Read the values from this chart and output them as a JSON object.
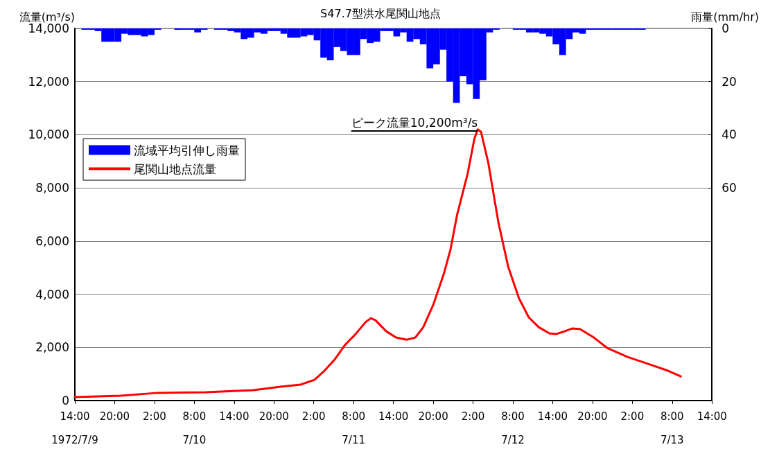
{
  "chart_data": {
    "type": "line",
    "title": "S47.7型洪水尾関山地点",
    "ylabel": "流量(m³/s)",
    "y2label": "雨量(mm/hr)",
    "xlim": [
      "1972-07-09T14:00",
      "1972-07-13T14:00"
    ],
    "xticks": [
      {
        "value": "1972-07-09T14:00",
        "label": "14:00\n\n1972/7/9"
      },
      {
        "value": "1972-07-09T20:00",
        "label": "20:00"
      },
      {
        "value": "1972-07-10T02:00",
        "label": "2:00"
      },
      {
        "value": "1972-07-10T08:00",
        "label": "8:00\n\n7/10"
      },
      {
        "value": "1972-07-10T14:00",
        "label": "14:00"
      },
      {
        "value": "1972-07-10T20:00",
        "label": "20:00"
      },
      {
        "value": "1972-07-11T02:00",
        "label": "2:00"
      },
      {
        "value": "1972-07-11T08:00",
        "label": "8:00\n\n7/11"
      },
      {
        "value": "1972-07-11T14:00",
        "label": "14:00"
      },
      {
        "value": "1972-07-11T20:00",
        "label": "20:00"
      },
      {
        "value": "1972-07-12T02:00",
        "label": "2:00"
      },
      {
        "value": "1972-07-12T08:00",
        "label": "8:00\n\n7/12"
      },
      {
        "value": "1972-07-12T14:00",
        "label": "14:00"
      },
      {
        "value": "1972-07-12T20:00",
        "label": "20:00"
      },
      {
        "value": "1972-07-13T02:00",
        "label": "2:00"
      },
      {
        "value": "1972-07-13T08:00",
        "label": "8:00\n\n7/13"
      },
      {
        "value": "1972-07-13T14:00",
        "label": "14:00"
      }
    ],
    "ylim": [
      0,
      14000
    ],
    "yticks": [
      0,
      {
        "value": 2000,
        "label": "2,000"
      },
      {
        "value": 4000,
        "label": "4,000"
      },
      {
        "value": 6000,
        "label": "6,000"
      },
      {
        "value": 8000,
        "label": "8,000"
      },
      {
        "value": 10000,
        "label": "10,000"
      },
      {
        "value": 12000,
        "label": "12,000"
      },
      {
        "value": 14000,
        "label": "14,000"
      }
    ],
    "y2lim": [
      140,
      0
    ],
    "y2ticks": [
      0,
      20,
      40,
      60
    ],
    "grid": "y",
    "legend": "top left",
    "marker": "none",
    "line_style": "solid",
    "series": [
      {
        "name": "流域平均引伸し雨量",
        "type": "bar",
        "axis": "y2",
        "color": "#0000ff",
        "x": [
          "1972-07-09T14:30",
          "1972-07-09T15:30",
          "1972-07-09T16:30",
          "1972-07-09T17:30",
          "1972-07-09T18:30",
          "1972-07-09T19:30",
          "1972-07-09T20:30",
          "1972-07-09T21:30",
          "1972-07-09T22:30",
          "1972-07-09T23:30",
          "1972-07-10T00:30",
          "1972-07-10T01:30",
          "1972-07-10T02:30",
          "1972-07-10T03:30",
          "1972-07-10T04:30",
          "1972-07-10T05:30",
          "1972-07-10T06:30",
          "1972-07-10T07:30",
          "1972-07-10T08:30",
          "1972-07-10T09:30",
          "1972-07-10T10:30",
          "1972-07-10T11:30",
          "1972-07-10T12:30",
          "1972-07-10T13:30",
          "1972-07-10T14:30",
          "1972-07-10T15:30",
          "1972-07-10T16:30",
          "1972-07-10T17:30",
          "1972-07-10T18:30",
          "1972-07-10T19:30",
          "1972-07-10T20:30",
          "1972-07-10T21:30",
          "1972-07-10T22:30",
          "1972-07-10T23:30",
          "1972-07-11T00:30",
          "1972-07-11T01:30",
          "1972-07-11T02:30",
          "1972-07-11T03:30",
          "1972-07-11T04:30",
          "1972-07-11T05:30",
          "1972-07-11T06:30",
          "1972-07-11T07:30",
          "1972-07-11T08:30",
          "1972-07-11T09:30",
          "1972-07-11T10:30",
          "1972-07-11T11:30",
          "1972-07-11T12:30",
          "1972-07-11T13:30",
          "1972-07-11T14:30",
          "1972-07-11T15:30",
          "1972-07-11T16:30",
          "1972-07-11T17:30",
          "1972-07-11T18:30",
          "1972-07-11T19:30",
          "1972-07-11T20:30",
          "1972-07-11T21:30",
          "1972-07-11T22:30",
          "1972-07-11T23:30",
          "1972-07-12T00:30",
          "1972-07-12T01:30",
          "1972-07-12T02:30",
          "1972-07-12T03:30",
          "1972-07-12T04:30",
          "1972-07-12T05:30",
          "1972-07-12T06:30",
          "1972-07-12T07:30",
          "1972-07-12T08:30",
          "1972-07-12T09:30",
          "1972-07-12T10:30",
          "1972-07-12T11:30",
          "1972-07-12T12:30",
          "1972-07-12T13:30",
          "1972-07-12T14:30",
          "1972-07-12T15:30",
          "1972-07-12T16:30",
          "1972-07-12T17:30",
          "1972-07-12T18:30",
          "1972-07-12T19:30",
          "1972-07-12T20:30",
          "1972-07-12T21:30",
          "1972-07-12T22:30",
          "1972-07-12T23:30",
          "1972-07-13T00:30",
          "1972-07-13T01:30",
          "1972-07-13T02:30",
          "1972-07-13T03:30"
        ],
        "values": [
          0,
          0.5,
          0.5,
          1,
          5,
          5,
          5,
          2,
          2.5,
          2.5,
          3,
          2.5,
          0.5,
          0,
          0,
          0.5,
          0.5,
          0.5,
          1.5,
          0.5,
          0,
          0.5,
          0.5,
          1,
          1.5,
          4,
          3.5,
          1.5,
          2,
          1,
          1,
          2,
          3.5,
          3.5,
          3,
          2.5,
          4.5,
          11,
          12,
          7,
          8.5,
          10,
          10,
          4,
          5.5,
          5,
          1,
          1,
          3,
          1.5,
          5,
          4,
          6,
          15,
          13.5,
          8,
          20,
          28,
          18,
          21,
          26.5,
          19.5,
          1.5,
          0.5,
          0,
          0,
          0.5,
          0.5,
          1.5,
          1.5,
          2,
          3,
          6,
          10,
          4,
          1.5,
          2,
          0.5,
          0.5,
          0.5,
          0.5,
          0.5,
          0.5,
          0.5,
          0.5,
          0.5
        ]
      },
      {
        "name": "尾関山地点流量",
        "color": "#ff0000",
        "x": [
          "1972-07-09T14:00",
          "1972-07-09T20:54",
          "1972-07-10T02:30",
          "1972-07-10T09:42",
          "1972-07-10T16:54",
          "1972-07-10T21:00",
          "1972-07-11T00:00",
          "1972-07-11T02:06",
          "1972-07-11T03:36",
          "1972-07-11T05:12",
          "1972-07-11T06:42",
          "1972-07-11T08:18",
          "1972-07-11T09:48",
          "1972-07-11T10:36",
          "1972-07-11T11:18",
          "1972-07-11T12:54",
          "1972-07-11T14:24",
          "1972-07-11T16:00",
          "1972-07-11T17:18",
          "1972-07-11T18:30",
          "1972-07-11T20:00",
          "1972-07-11T21:36",
          "1972-07-11T22:36",
          "1972-07-11T23:36",
          "1972-07-12T01:12",
          "1972-07-12T02:12",
          "1972-07-12T02:42",
          "1972-07-12T03:12",
          "1972-07-12T04:18",
          "1972-07-12T05:48",
          "1972-07-12T07:18",
          "1972-07-12T08:54",
          "1972-07-12T10:24",
          "1972-07-12T11:54",
          "1972-07-12T13:30",
          "1972-07-12T14:30",
          "1972-07-12T15:30",
          "1972-07-12T16:54",
          "1972-07-12T18:06",
          "1972-07-12T20:12",
          "1972-07-12T22:12",
          "1972-07-13T01:18",
          "1972-07-13T04:24",
          "1972-07-13T07:24",
          "1972-07-13T09:18"
        ],
        "values": [
          130,
          180,
          290,
          310,
          390,
          520,
          600,
          780,
          1120,
          1560,
          2090,
          2500,
          2950,
          3100,
          3020,
          2610,
          2370,
          2290,
          2370,
          2760,
          3600,
          4770,
          5680,
          6990,
          8550,
          9850,
          10200,
          10110,
          8940,
          6730,
          5030,
          3860,
          3130,
          2760,
          2530,
          2500,
          2580,
          2710,
          2690,
          2370,
          1980,
          1640,
          1380,
          1120,
          910
        ]
      }
    ],
    "annotations": [
      {
        "text": "ピーク流量10,200m³/s",
        "x": "1972-07-12T02:42",
        "y": 10200
      }
    ]
  }
}
